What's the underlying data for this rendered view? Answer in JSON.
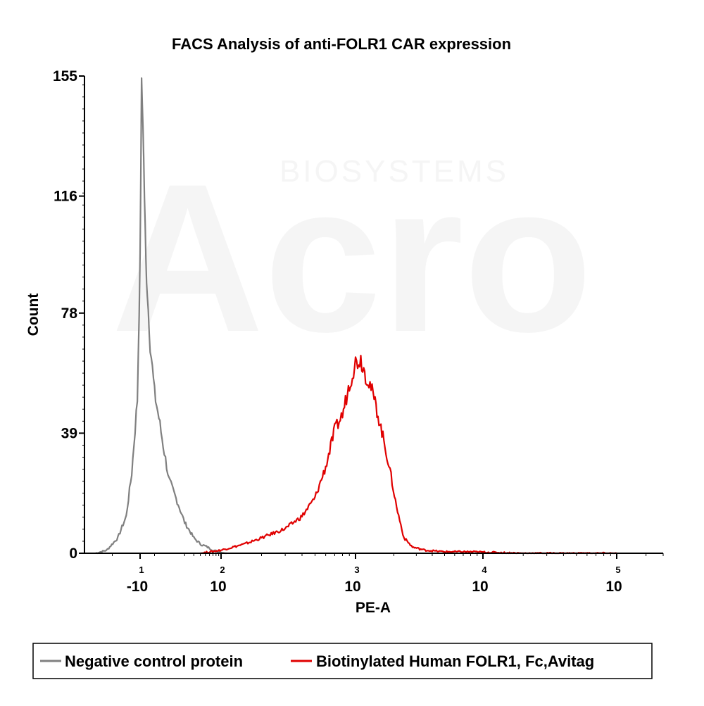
{
  "chart_data": {
    "type": "area",
    "title": "FACS Analysis of anti-FOLR1 CAR expression",
    "xlabel": "PE-A",
    "ylabel": "Count",
    "x_scale": "biexponential",
    "xlim": [
      -30,
      300000
    ],
    "ylim": [
      0,
      155
    ],
    "y_ticks": [
      "0",
      "39",
      "78",
      "116",
      "155"
    ],
    "x_ticks": [
      {
        "base": "-10",
        "exp": "1",
        "value": -10
      },
      {
        "base": "10",
        "exp": "2",
        "value": 100
      },
      {
        "base": "10",
        "exp": "3",
        "value": 1000
      },
      {
        "base": "10",
        "exp": "4",
        "value": 10000
      },
      {
        "base": "10",
        "exp": "5",
        "value": 100000
      }
    ],
    "legend_position": "bottom",
    "series": [
      {
        "name": "Negative control protein",
        "color": "#808080",
        "x": [
          -26,
          -22,
          -18,
          -15,
          -13,
          -11,
          -10,
          -9,
          -8,
          -7,
          -6,
          -5,
          -3,
          0,
          3,
          6,
          10,
          15,
          20,
          30,
          40,
          55,
          70,
          90,
          110
        ],
        "y": [
          0,
          1,
          5,
          12,
          26,
          50,
          95,
          152,
          140,
          116,
          95,
          85,
          68,
          52,
          44,
          35,
          24,
          16,
          10,
          5,
          3,
          2,
          1,
          0.5,
          0
        ]
      },
      {
        "name": "Biotinylated Human FOLR1, Fc,Avitag",
        "color": "#e00000",
        "x": [
          40,
          100,
          150,
          200,
          300,
          400,
          500,
          600,
          700,
          800,
          900,
          1000,
          1100,
          1200,
          1300,
          1400,
          1500,
          1700,
          1900,
          2100,
          2400,
          2800,
          3500,
          5000,
          8000,
          20000,
          100000
        ],
        "y": [
          0,
          1,
          3,
          5,
          8,
          12,
          18,
          28,
          40,
          45,
          55,
          62,
          63,
          58,
          55,
          50,
          45,
          35,
          25,
          15,
          5,
          2,
          1,
          0.5,
          0.5,
          0,
          0
        ]
      }
    ]
  }
}
